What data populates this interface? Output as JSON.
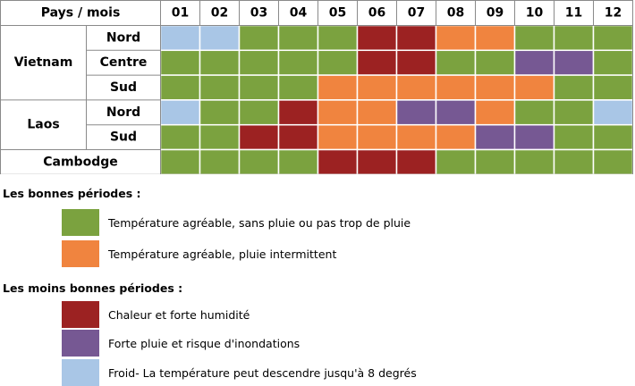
{
  "chart_data": {
    "type": "heatmap",
    "header_label": "Pays / mois",
    "months": [
      "01",
      "02",
      "03",
      "04",
      "05",
      "06",
      "07",
      "08",
      "09",
      "10",
      "11",
      "12"
    ],
    "countries": [
      {
        "name": "Vietnam",
        "regions": [
          {
            "name": "Nord",
            "values": [
              "cold",
              "cold",
              "good",
              "good",
              "good",
              "hot",
              "hot",
              "rain",
              "rain",
              "good",
              "good",
              "good"
            ]
          },
          {
            "name": "Centre",
            "values": [
              "good",
              "good",
              "good",
              "good",
              "good",
              "hot",
              "hot",
              "good",
              "good",
              "flood",
              "flood",
              "good"
            ]
          },
          {
            "name": "Sud",
            "values": [
              "good",
              "good",
              "good",
              "good",
              "rain",
              "rain",
              "rain",
              "rain",
              "rain",
              "rain",
              "good",
              "good"
            ]
          }
        ]
      },
      {
        "name": "Laos",
        "regions": [
          {
            "name": "Nord",
            "values": [
              "cold",
              "good",
              "good",
              "hot",
              "rain",
              "rain",
              "flood",
              "flood",
              "rain",
              "good",
              "good",
              "cold"
            ]
          },
          {
            "name": "Sud",
            "values": [
              "good",
              "good",
              "hot",
              "hot",
              "rain",
              "rain",
              "rain",
              "rain",
              "flood",
              "flood",
              "good",
              "good"
            ]
          }
        ]
      },
      {
        "name": "Cambodge",
        "regions": [
          {
            "name": "",
            "values": [
              "good",
              "good",
              "good",
              "good",
              "hot",
              "hot",
              "hot",
              "good",
              "good",
              "good",
              "good",
              "good"
            ]
          }
        ]
      }
    ],
    "colors": {
      "good": "#7ba23f",
      "rain": "#f0843f",
      "hot": "#9c2222",
      "flood": "#765893",
      "cold": "#a9c6e6"
    }
  },
  "legend": {
    "good_heading": "Les bonnes périodes :",
    "bad_heading": "Les moins bonnes périodes :",
    "items": [
      {
        "key": "good",
        "color": "#7ba23f",
        "label": "Température agréable, sans pluie ou pas trop de pluie"
      },
      {
        "key": "rain",
        "color": "#f0843f",
        "label": "Température agréable, pluie intermittent"
      },
      {
        "key": "hot",
        "color": "#9c2222",
        "label": "Chaleur et forte humidité"
      },
      {
        "key": "flood",
        "color": "#765893",
        "label": "Forte pluie et risque d'inondations"
      },
      {
        "key": "cold",
        "color": "#a9c6e6",
        "label": "Froid- La température peut descendre jusqu'à 8 degrés"
      }
    ]
  }
}
